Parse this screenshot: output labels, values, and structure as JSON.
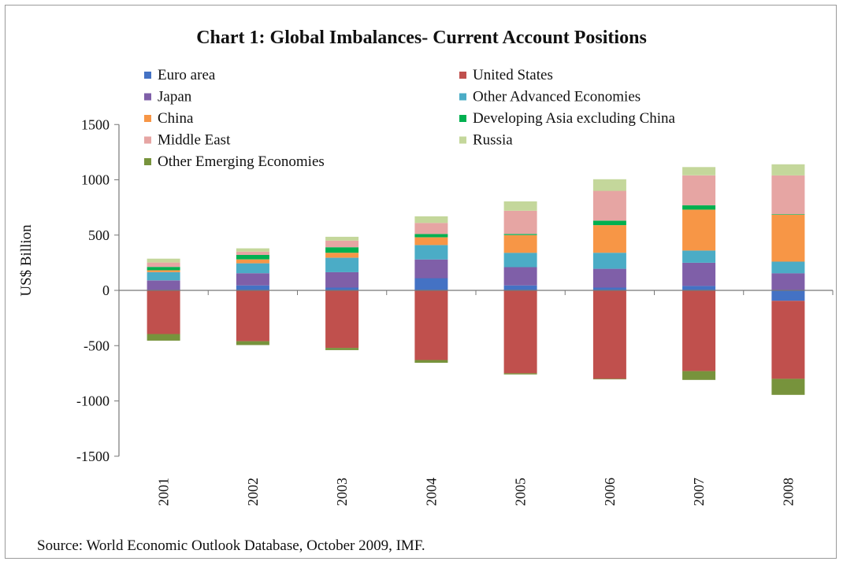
{
  "chart_data": {
    "type": "bar",
    "stacked": true,
    "title": "Chart 1: Global Imbalances- Current Account Positions",
    "ylabel": "US$ Billion",
    "xlabel": "",
    "ylim": [
      -1500,
      1500
    ],
    "yticks": [
      1500,
      1000,
      500,
      0,
      -500,
      -1000,
      -1500
    ],
    "grid": false,
    "legend_placement": "top",
    "categories": [
      "2001",
      "2002",
      "2003",
      "2004",
      "2005",
      "2006",
      "2007",
      "2008"
    ],
    "series": [
      {
        "name": "Euro area",
        "color": "#4472C4",
        "values": [
          0,
          45,
          25,
          110,
          45,
          25,
          40,
          -95
        ]
      },
      {
        "name": "United States",
        "color": "#C0504D",
        "values": [
          -395,
          -460,
          -520,
          -630,
          -750,
          -800,
          -730,
          -705
        ]
      },
      {
        "name": "Japan",
        "color": "#7F5FA8",
        "values": [
          90,
          110,
          140,
          170,
          165,
          170,
          210,
          155
        ]
      },
      {
        "name": "Other Advanced Economies",
        "color": "#4BACC6",
        "values": [
          75,
          90,
          130,
          130,
          130,
          145,
          110,
          105
        ]
      },
      {
        "name": "China",
        "color": "#F79646",
        "values": [
          17,
          35,
          45,
          70,
          160,
          250,
          370,
          425
        ]
      },
      {
        "name": "Developing Asia excluding China",
        "color": "#00B050",
        "values": [
          30,
          40,
          50,
          30,
          10,
          40,
          40,
          5
        ]
      },
      {
        "name": "Middle East",
        "color": "#E6A5A3",
        "values": [
          40,
          30,
          60,
          100,
          210,
          270,
          270,
          350
        ]
      },
      {
        "name": "Russia",
        "color": "#C4D79B",
        "values": [
          35,
          30,
          35,
          60,
          85,
          105,
          75,
          100
        ]
      },
      {
        "name": "Other Emerging Economies",
        "color": "#77933C",
        "values": [
          -60,
          -35,
          -20,
          -25,
          -10,
          -5,
          -80,
          -145
        ]
      }
    ]
  },
  "source": "Source: World  Economic Outlook Database,  October 2009, IMF."
}
